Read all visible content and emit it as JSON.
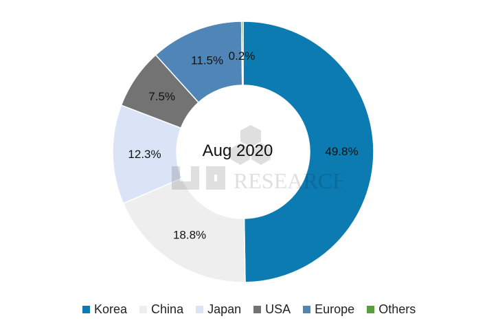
{
  "chart_data": {
    "type": "pie",
    "title": "Aug 2020",
    "categories": [
      "Korea",
      "China",
      "Japan",
      "USA",
      "Europe",
      "Others"
    ],
    "values": [
      49.8,
      18.8,
      12.3,
      7.5,
      11.5,
      0.2
    ],
    "labels": [
      "49.8%",
      "18.8%",
      "12.3%",
      "7.5%",
      "11.5%",
      "0.2%"
    ],
    "colors": [
      "#0c7bb1",
      "#eeeeee",
      "#dbe4f6",
      "#737373",
      "#4f86b7",
      "#5a9d3c"
    ],
    "legend": "bottom"
  },
  "watermark": {
    "text": "RESEARCH"
  }
}
